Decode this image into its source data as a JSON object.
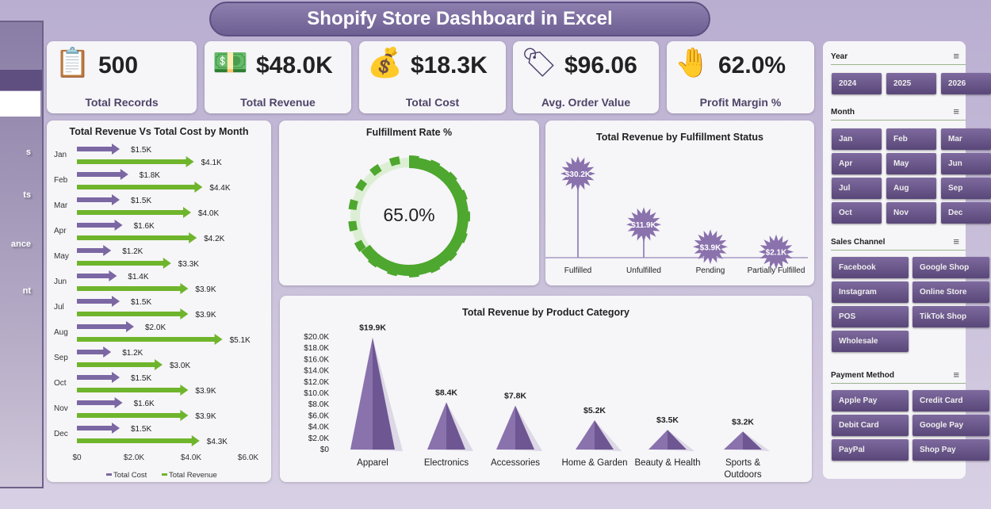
{
  "title": "Shopify Store Dashboard in Excel",
  "sidebar": {
    "items": [
      "s",
      "ts",
      "ance",
      "nt"
    ]
  },
  "kpis": [
    {
      "value": "500",
      "label": "Total Records",
      "icon": "clipboard-calculator-icon"
    },
    {
      "value": "$48.0K",
      "label": "Total Revenue",
      "icon": "cash-register-icon"
    },
    {
      "value": "$18.3K",
      "label": "Total Cost",
      "icon": "money-bag-chart-icon"
    },
    {
      "value": "$96.06",
      "label": "Avg. Order Value",
      "icon": "price-tag-icon"
    },
    {
      "value": "62.0%",
      "label": "Profit Margin %",
      "icon": "hand-money-icon"
    }
  ],
  "colors": {
    "cost": "#7b67a3",
    "revenue": "#6fb52c",
    "donut": "#4ea72e",
    "donut_track": "#dcefd4",
    "pyramid": "#8a72ad"
  },
  "chart_data": [
    {
      "type": "bar",
      "title": "Total Revenue Vs Total Cost by Month",
      "categories": [
        "Jan",
        "Feb",
        "Mar",
        "Apr",
        "May",
        "Jun",
        "Jul",
        "Aug",
        "Sep",
        "Oct",
        "Nov",
        "Dec"
      ],
      "series": [
        {
          "name": "Total Cost",
          "values": [
            1.5,
            1.8,
            1.5,
            1.6,
            1.2,
            1.4,
            1.5,
            2.0,
            1.2,
            1.5,
            1.6,
            1.5
          ],
          "labels": [
            "$1.5K",
            "$1.8K",
            "$1.5K",
            "$1.6K",
            "$1.2K",
            "$1.4K",
            "$1.5K",
            "$2.0K",
            "$1.2K",
            "$1.5K",
            "$1.6K",
            "$1.5K"
          ]
        },
        {
          "name": "Total Revenue",
          "values": [
            4.1,
            4.4,
            4.0,
            4.2,
            3.3,
            3.9,
            3.9,
            5.1,
            3.0,
            3.9,
            3.9,
            4.3
          ],
          "labels": [
            "$4.1K",
            "$4.4K",
            "$4.0K",
            "$4.2K",
            "$3.3K",
            "$3.9K",
            "$3.9K",
            "$5.1K",
            "$3.0K",
            "$3.9K",
            "$3.9K",
            "$4.3K"
          ]
        }
      ],
      "xticks": [
        "$0",
        "$2.0K",
        "$4.0K",
        "$6.0K"
      ],
      "xlim": [
        0,
        6
      ],
      "legend": "bottom"
    },
    {
      "type": "pie",
      "title": "Fulfillment Rate %",
      "value": 65.0,
      "label": "65.0%"
    },
    {
      "type": "bar",
      "title": "Total Revenue  by Fulfillment Status",
      "categories": [
        "Fulfilled",
        "Unfulfilled",
        "Pending",
        "Partially Fulfilled"
      ],
      "values": [
        30.2,
        11.9,
        3.9,
        2.1
      ],
      "labels": [
        "$30.2K",
        "$11.9K",
        "$3.9K",
        "$2.1K"
      ]
    },
    {
      "type": "bar",
      "title": "Total Revenue  by Product Category",
      "categories": [
        "Apparel",
        "Electronics",
        "Accessories",
        "Home & Garden",
        "Beauty & Health",
        "Sports &|Outdoors"
      ],
      "values": [
        19.9,
        8.4,
        7.8,
        5.2,
        3.5,
        3.2
      ],
      "labels": [
        "$19.9K",
        "$8.4K",
        "$7.8K",
        "$5.2K",
        "$3.5K",
        "$3.2K"
      ],
      "yticks": [
        "$0",
        "$2.0K",
        "$4.0K",
        "$6.0K",
        "$8.0K",
        "$10.0K",
        "$12.0K",
        "$14.0K",
        "$16.0K",
        "$18.0K",
        "$20.0K"
      ],
      "ylim": [
        0,
        20
      ]
    }
  ],
  "slicers": [
    {
      "title": "Year",
      "items": [
        "2024",
        "2025",
        "2026"
      ],
      "cols": 3
    },
    {
      "title": "Month",
      "items": [
        "Jan",
        "Feb",
        "Mar",
        "Apr",
        "May",
        "Jun",
        "Jul",
        "Aug",
        "Sep",
        "Oct",
        "Nov",
        "Dec"
      ],
      "cols": 3
    },
    {
      "title": "Sales Channel",
      "items": [
        "Facebook",
        "Google Shop",
        "Instagram",
        "Online Store",
        "POS",
        "TikTok Shop",
        "Wholesale"
      ],
      "cols": 2
    },
    {
      "title": "Payment Method",
      "items": [
        "Apple Pay",
        "Credit Card",
        "Debit Card",
        "Google Pay",
        "PayPal",
        "Shop Pay"
      ],
      "cols": 2
    }
  ]
}
